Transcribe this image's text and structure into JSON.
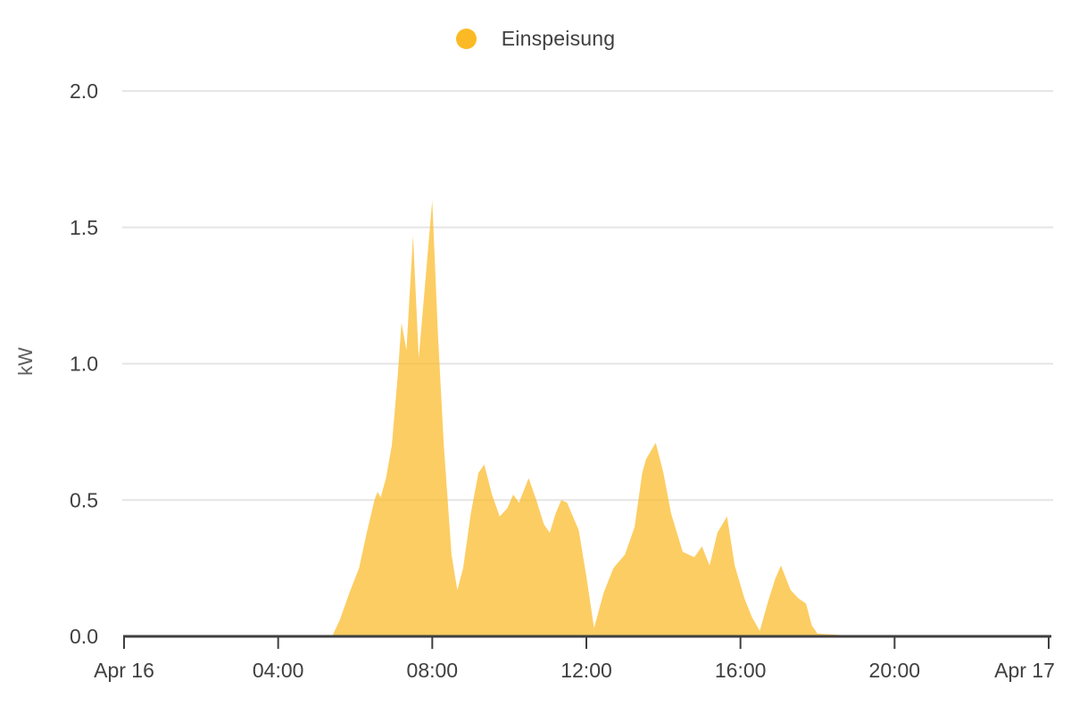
{
  "legend": {
    "label": "Einspeisung",
    "color": "#fbba25"
  },
  "y_axis": {
    "unit": "kW"
  },
  "chart_data": {
    "type": "area",
    "title": "",
    "xlabel": "",
    "ylabel": "kW",
    "legend_position": "top-center",
    "grid": "horizontal",
    "x_range_hours": [
      0,
      24
    ],
    "x_start_label": "Apr 16",
    "x_end_label": "Apr 17",
    "ylim": [
      0,
      2.0
    ],
    "x_ticks": [
      {
        "hour": 0,
        "label": "Apr 16"
      },
      {
        "hour": 4,
        "label": "04:00"
      },
      {
        "hour": 8,
        "label": "08:00"
      },
      {
        "hour": 12,
        "label": "12:00"
      },
      {
        "hour": 16,
        "label": "16:00"
      },
      {
        "hour": 20,
        "label": "20:00"
      },
      {
        "hour": 24,
        "label": "Apr 17"
      }
    ],
    "y_ticks": [
      {
        "value": 0.0,
        "label": "0.0"
      },
      {
        "value": 0.5,
        "label": "0.5"
      },
      {
        "value": 1.0,
        "label": "1.0"
      },
      {
        "value": 1.5,
        "label": "1.5"
      },
      {
        "value": 2.0,
        "label": "2.0"
      }
    ],
    "series": [
      {
        "name": "Einspeisung",
        "unit": "kW",
        "color": "#fbba25",
        "fill_opacity": 0.72,
        "points_hour_kw": [
          [
            5.4,
            0.0
          ],
          [
            5.6,
            0.06
          ],
          [
            5.85,
            0.16
          ],
          [
            6.1,
            0.25
          ],
          [
            6.3,
            0.38
          ],
          [
            6.5,
            0.5
          ],
          [
            6.58,
            0.53
          ],
          [
            6.66,
            0.51
          ],
          [
            6.8,
            0.58
          ],
          [
            6.95,
            0.7
          ],
          [
            7.1,
            0.95
          ],
          [
            7.2,
            1.15
          ],
          [
            7.33,
            1.05
          ],
          [
            7.5,
            1.47
          ],
          [
            7.65,
            1.02
          ],
          [
            8.0,
            1.6
          ],
          [
            8.15,
            1.1
          ],
          [
            8.3,
            0.7
          ],
          [
            8.5,
            0.3
          ],
          [
            8.65,
            0.17
          ],
          [
            8.8,
            0.25
          ],
          [
            9.0,
            0.45
          ],
          [
            9.2,
            0.6
          ],
          [
            9.35,
            0.63
          ],
          [
            9.55,
            0.52
          ],
          [
            9.75,
            0.44
          ],
          [
            9.95,
            0.47
          ],
          [
            10.1,
            0.52
          ],
          [
            10.25,
            0.49
          ],
          [
            10.5,
            0.58
          ],
          [
            10.7,
            0.5
          ],
          [
            10.9,
            0.41
          ],
          [
            11.05,
            0.38
          ],
          [
            11.2,
            0.45
          ],
          [
            11.35,
            0.5
          ],
          [
            11.5,
            0.49
          ],
          [
            11.65,
            0.44
          ],
          [
            11.8,
            0.39
          ],
          [
            12.0,
            0.22
          ],
          [
            12.2,
            0.03
          ],
          [
            12.45,
            0.16
          ],
          [
            12.7,
            0.25
          ],
          [
            13.0,
            0.3
          ],
          [
            13.25,
            0.4
          ],
          [
            13.45,
            0.6
          ],
          [
            13.55,
            0.65
          ],
          [
            13.8,
            0.71
          ],
          [
            14.0,
            0.6
          ],
          [
            14.2,
            0.45
          ],
          [
            14.5,
            0.31
          ],
          [
            14.8,
            0.29
          ],
          [
            15.0,
            0.33
          ],
          [
            15.2,
            0.26
          ],
          [
            15.4,
            0.38
          ],
          [
            15.65,
            0.44
          ],
          [
            15.85,
            0.26
          ],
          [
            16.1,
            0.14
          ],
          [
            16.3,
            0.07
          ],
          [
            16.5,
            0.02
          ],
          [
            16.7,
            0.12
          ],
          [
            16.9,
            0.21
          ],
          [
            17.05,
            0.26
          ],
          [
            17.3,
            0.17
          ],
          [
            17.5,
            0.14
          ],
          [
            17.7,
            0.12
          ],
          [
            17.85,
            0.04
          ],
          [
            18.0,
            0.01
          ],
          [
            18.6,
            0.005
          ],
          [
            18.75,
            0.0
          ]
        ]
      }
    ],
    "colors": {
      "grid_line": "#e5e5e5",
      "axis_line": "#3f3f3f",
      "tick_label": "#404040",
      "axis_unit_label": "#5f5f5f"
    }
  }
}
